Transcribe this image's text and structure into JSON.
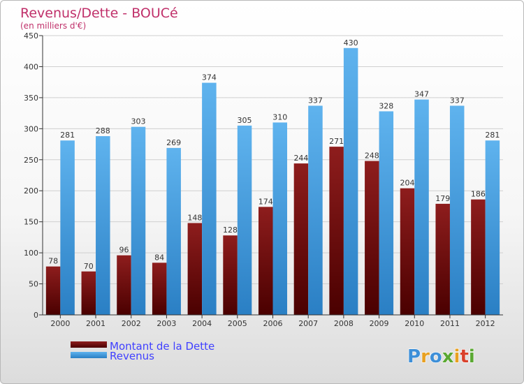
{
  "chart_data": {
    "type": "bar",
    "title": "Revenus/Dette - BOUCé",
    "subtitle": "(en milliers d'€)",
    "categories": [
      "2000",
      "2001",
      "2002",
      "2003",
      "2004",
      "2005",
      "2006",
      "2007",
      "2008",
      "2009",
      "2010",
      "2011",
      "2012"
    ],
    "series": [
      {
        "name": "Montant de la Dette",
        "color": "#8b1a1a",
        "values": [
          78,
          70,
          96,
          84,
          148,
          128,
          174,
          244,
          271,
          248,
          204,
          179,
          186
        ]
      },
      {
        "name": "Revenus",
        "color": "#3d9be0",
        "values": [
          281,
          288,
          303,
          269,
          374,
          305,
          310,
          337,
          430,
          328,
          347,
          337,
          281
        ]
      }
    ],
    "ylim": [
      0,
      450
    ],
    "yticks": [
      0,
      50,
      100,
      150,
      200,
      250,
      300,
      350,
      400,
      450
    ],
    "grid": true,
    "legend_position": "bottom-left"
  },
  "logo": {
    "text": "Proxiti"
  },
  "colors": {
    "title": "#c0306a",
    "legend_text": "#4040ff",
    "axis": "#333333",
    "grid": "#cfcfcf"
  }
}
